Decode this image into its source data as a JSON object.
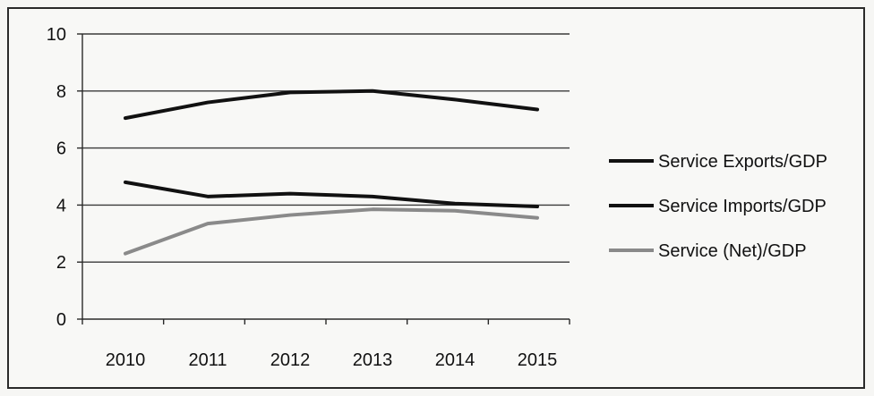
{
  "chart_data": {
    "type": "line",
    "x": [
      "2010",
      "2011",
      "2012",
      "2013",
      "2014",
      "2015"
    ],
    "ylim": [
      0,
      10
    ],
    "yticks": [
      0,
      2,
      4,
      6,
      8,
      10
    ],
    "grid": true,
    "legend_position": "right",
    "series": [
      {
        "name": "Service Exports/GDP",
        "values": [
          7.05,
          7.6,
          7.95,
          8.0,
          7.7,
          7.35
        ],
        "color": "#111111"
      },
      {
        "name": "Service Imports/GDP",
        "values": [
          4.8,
          4.3,
          4.4,
          4.3,
          4.05,
          3.95
        ],
        "color": "#111111"
      },
      {
        "name": "Service (Net)/GDP",
        "values": [
          2.3,
          3.35,
          3.65,
          3.85,
          3.8,
          3.55
        ],
        "color": "#8a8a8a"
      }
    ]
  }
}
